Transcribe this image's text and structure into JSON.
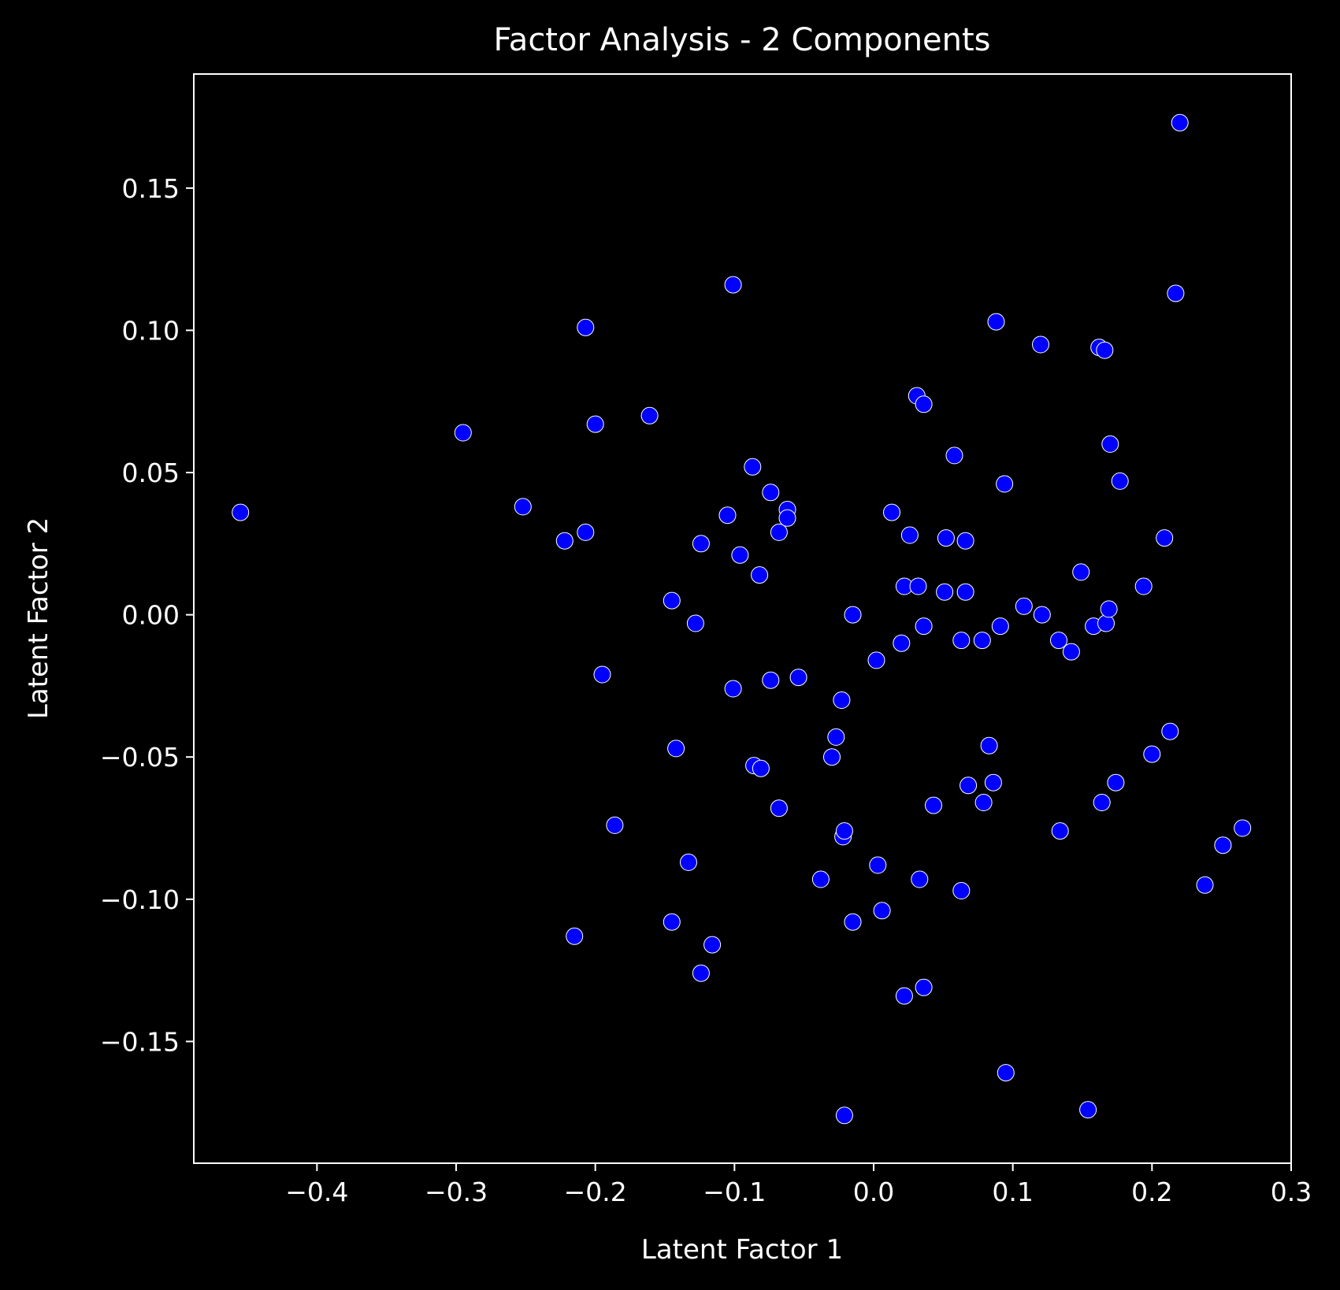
{
  "chart_data": {
    "type": "scatter",
    "title": "Factor Analysis - 2 Components",
    "xlabel": "Latent Factor 1",
    "ylabel": "Latent Factor 2",
    "xlim": [
      -0.4885,
      0.3
    ],
    "ylim": [
      -0.1928,
      0.1901
    ],
    "xticks": [
      -0.4,
      -0.3,
      -0.2,
      -0.1,
      0.0,
      0.1,
      0.2,
      0.3
    ],
    "xtick_labels": [
      "−0.4",
      "−0.3",
      "−0.2",
      "−0.1",
      "0.0",
      "0.1",
      "0.2",
      "0.3"
    ],
    "yticks": [
      -0.15,
      -0.1,
      -0.05,
      0.0,
      0.05,
      0.1,
      0.15
    ],
    "ytick_labels": [
      "−0.15",
      "−0.10",
      "−0.05",
      "0.00",
      "0.05",
      "0.10",
      "0.15"
    ],
    "grid": false,
    "colors": {
      "background": "#000000",
      "axes": "#ffffff",
      "text": "#ffffff",
      "point": "#0000ff",
      "point_edge": "#ffffff"
    },
    "points": [
      [
        -0.455,
        0.036
      ],
      [
        -0.295,
        0.064
      ],
      [
        -0.252,
        0.038
      ],
      [
        -0.222,
        0.026
      ],
      [
        -0.207,
        0.101
      ],
      [
        -0.207,
        0.029
      ],
      [
        -0.2,
        0.067
      ],
      [
        -0.195,
        -0.021
      ],
      [
        -0.186,
        -0.074
      ],
      [
        -0.215,
        -0.113
      ],
      [
        -0.161,
        0.07
      ],
      [
        -0.145,
        0.005
      ],
      [
        -0.142,
        -0.047
      ],
      [
        -0.145,
        -0.108
      ],
      [
        -0.133,
        -0.087
      ],
      [
        -0.128,
        -0.003
      ],
      [
        -0.124,
        0.025
      ],
      [
        -0.124,
        -0.126
      ],
      [
        -0.116,
        -0.116
      ],
      [
        -0.105,
        0.035
      ],
      [
        -0.101,
        0.116
      ],
      [
        -0.101,
        -0.026
      ],
      [
        -0.096,
        0.021
      ],
      [
        -0.087,
        0.052
      ],
      [
        -0.086,
        -0.053
      ],
      [
        -0.082,
        0.014
      ],
      [
        -0.081,
        -0.054
      ],
      [
        -0.074,
        0.043
      ],
      [
        -0.074,
        -0.023
      ],
      [
        -0.068,
        0.029
      ],
      [
        -0.068,
        -0.068
      ],
      [
        -0.062,
        0.037
      ],
      [
        -0.062,
        0.034
      ],
      [
        -0.054,
        -0.022
      ],
      [
        -0.038,
        -0.093
      ],
      [
        -0.03,
        -0.05
      ],
      [
        -0.027,
        -0.043
      ],
      [
        -0.023,
        -0.03
      ],
      [
        -0.022,
        -0.078
      ],
      [
        -0.021,
        -0.076
      ],
      [
        -0.021,
        -0.176
      ],
      [
        -0.015,
        0.0
      ],
      [
        -0.015,
        -0.108
      ],
      [
        0.002,
        -0.016
      ],
      [
        0.003,
        -0.088
      ],
      [
        0.006,
        -0.104
      ],
      [
        0.013,
        0.036
      ],
      [
        0.02,
        -0.01
      ],
      [
        0.022,
        0.01
      ],
      [
        0.022,
        -0.134
      ],
      [
        0.026,
        0.028
      ],
      [
        0.031,
        0.077
      ],
      [
        0.032,
        0.01
      ],
      [
        0.033,
        -0.093
      ],
      [
        0.036,
        0.074
      ],
      [
        0.036,
        -0.004
      ],
      [
        0.036,
        -0.131
      ],
      [
        0.043,
        -0.067
      ],
      [
        0.051,
        0.008
      ],
      [
        0.052,
        0.027
      ],
      [
        0.058,
        0.056
      ],
      [
        0.063,
        -0.009
      ],
      [
        0.063,
        -0.097
      ],
      [
        0.066,
        0.026
      ],
      [
        0.066,
        0.008
      ],
      [
        0.068,
        -0.06
      ],
      [
        0.078,
        -0.009
      ],
      [
        0.079,
        -0.066
      ],
      [
        0.083,
        -0.046
      ],
      [
        0.086,
        -0.059
      ],
      [
        0.088,
        0.103
      ],
      [
        0.091,
        -0.004
      ],
      [
        0.094,
        0.046
      ],
      [
        0.095,
        -0.161
      ],
      [
        0.108,
        0.003
      ],
      [
        0.12,
        0.095
      ],
      [
        0.121,
        0.0
      ],
      [
        0.133,
        -0.009
      ],
      [
        0.134,
        -0.076
      ],
      [
        0.142,
        -0.013
      ],
      [
        0.149,
        0.015
      ],
      [
        0.154,
        -0.174
      ],
      [
        0.158,
        -0.004
      ],
      [
        0.162,
        0.094
      ],
      [
        0.164,
        -0.066
      ],
      [
        0.166,
        0.093
      ],
      [
        0.167,
        -0.003
      ],
      [
        0.169,
        0.002
      ],
      [
        0.17,
        0.06
      ],
      [
        0.174,
        -0.059
      ],
      [
        0.177,
        0.047
      ],
      [
        0.194,
        0.01
      ],
      [
        0.2,
        -0.049
      ],
      [
        0.209,
        0.027
      ],
      [
        0.213,
        -0.041
      ],
      [
        0.217,
        0.113
      ],
      [
        0.22,
        0.173
      ],
      [
        0.238,
        -0.095
      ],
      [
        0.251,
        -0.081
      ],
      [
        0.265,
        -0.075
      ]
    ]
  }
}
